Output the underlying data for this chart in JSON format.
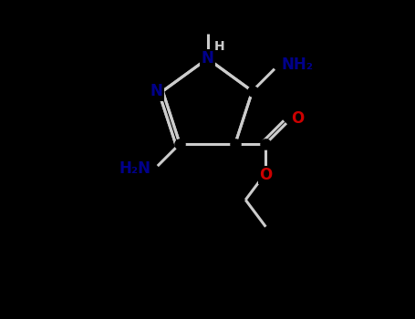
{
  "bg_color": "#000000",
  "n_color": "#00008B",
  "o_color": "#CC0000",
  "bond_color": "#cccccc",
  "figsize": [
    4.55,
    3.5
  ],
  "dpi": 100,
  "xlim": [
    0,
    9
  ],
  "ylim": [
    0,
    7
  ]
}
